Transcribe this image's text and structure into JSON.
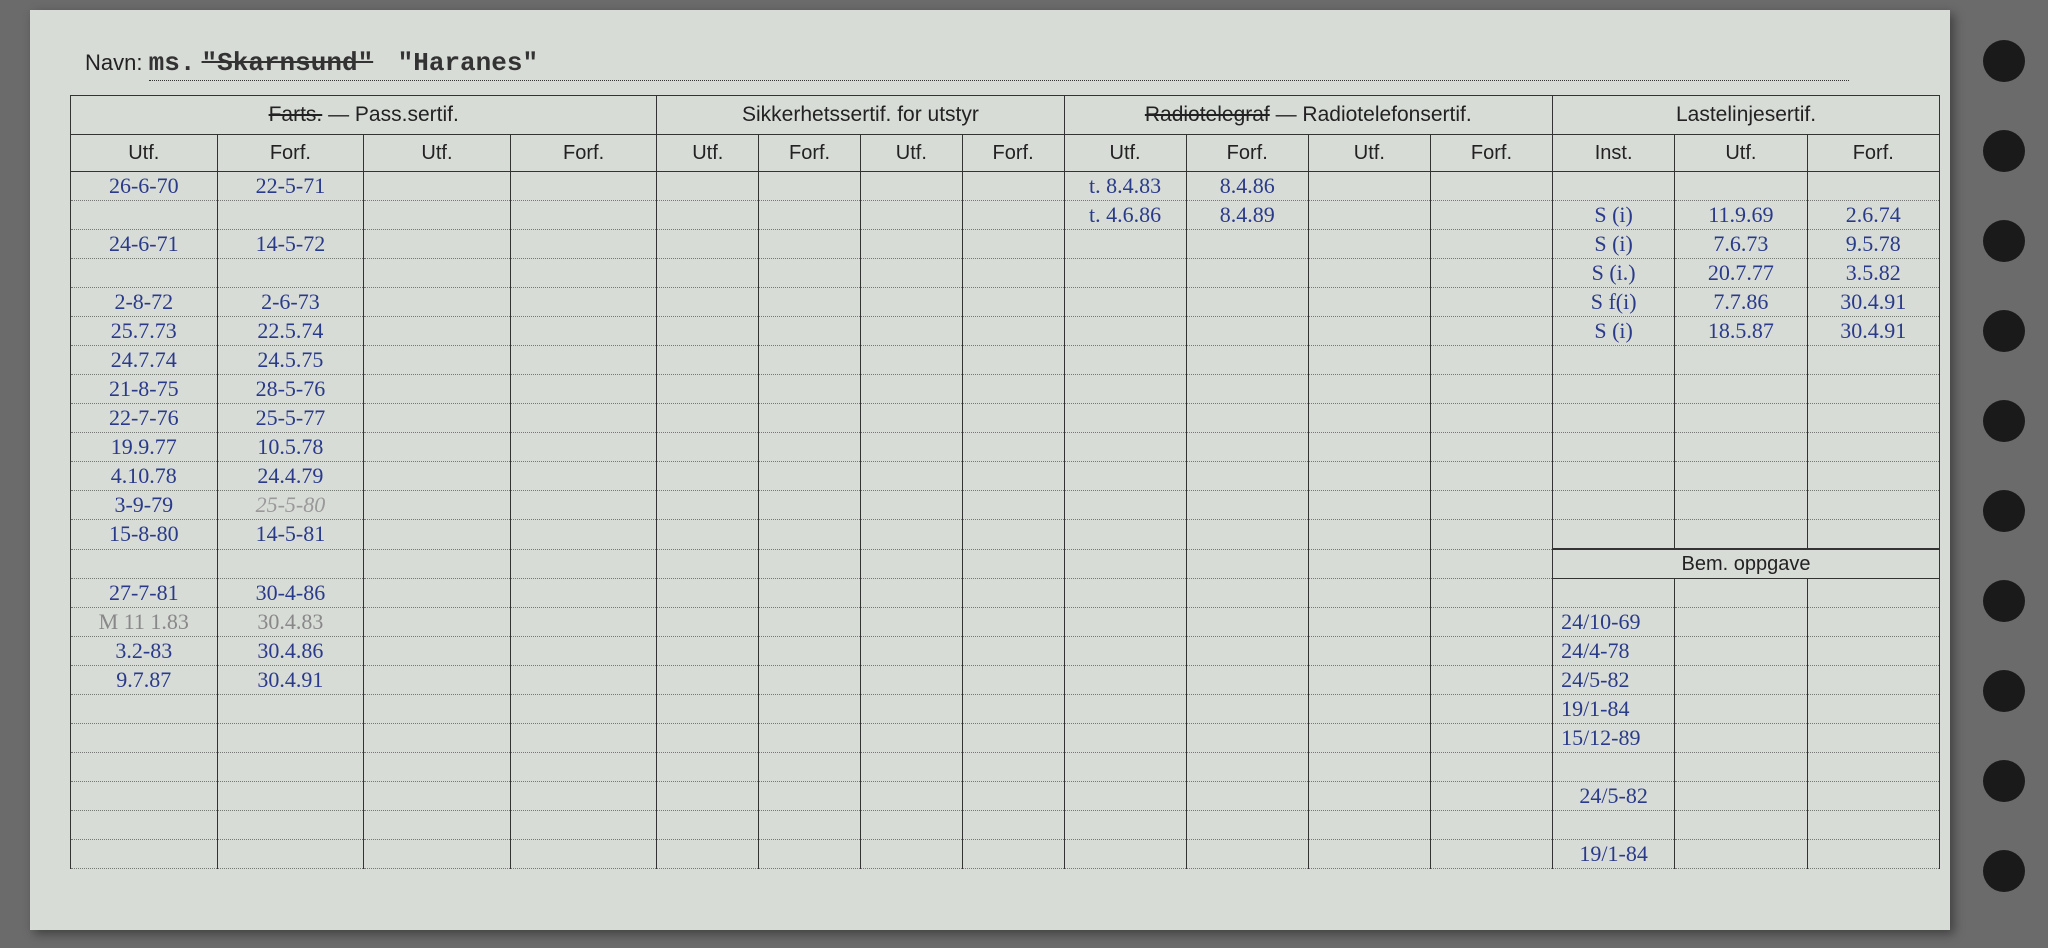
{
  "header": {
    "navn_label": "Navn:",
    "typed_prefix": "ms.",
    "struck_name": "\"Skarnsund\"",
    "name": "\"Haranes\""
  },
  "groups": {
    "g1": {
      "struck": "Farts.",
      "rest": " — Pass.sertif."
    },
    "g2": "Sikkerhetssertif. for utstyr",
    "g3": {
      "struck": "Radiotelegraf",
      "rest": " — Radiotelefonsertif."
    },
    "g4": "Lastelinjesertif."
  },
  "cols": {
    "utf": "Utf.",
    "forf": "Forf.",
    "inst": "Inst."
  },
  "pass": [
    {
      "utf": "26-6-70",
      "forf": "22-5-71"
    },
    {
      "utf": "",
      "forf": ""
    },
    {
      "utf": "24-6-71",
      "forf": "14-5-72"
    },
    {
      "utf": "",
      "forf": ""
    },
    {
      "utf": "2-8-72",
      "forf": "2-6-73"
    },
    {
      "utf": "25.7.73",
      "forf": "22.5.74"
    },
    {
      "utf": "24.7.74",
      "forf": "24.5.75"
    },
    {
      "utf": "21-8-75",
      "forf": "28-5-76"
    },
    {
      "utf": "22-7-76",
      "forf": "25-5-77"
    },
    {
      "utf": "19.9.77",
      "forf": "10.5.78"
    },
    {
      "utf": "4.10.78",
      "forf": "24.4.79"
    },
    {
      "utf": "3-9-79",
      "forf": "25-5-80",
      "grey2": true
    },
    {
      "utf": "15-8-80",
      "forf": "14-5-81"
    },
    {
      "utf": "",
      "forf": ""
    },
    {
      "utf": "27-7-81",
      "forf": "30-4-86"
    },
    {
      "utf": "M 11 1.83",
      "forf": "30.4.83",
      "grey": true
    },
    {
      "utf": "3.2-83",
      "forf": "30.4.86"
    },
    {
      "utf": "9.7.87",
      "forf": "30.4.91"
    },
    {
      "utf": "",
      "forf": ""
    },
    {
      "utf": "",
      "forf": ""
    },
    {
      "utf": "",
      "forf": ""
    },
    {
      "utf": "",
      "forf": ""
    },
    {
      "utf": "",
      "forf": ""
    },
    {
      "utf": "",
      "forf": ""
    }
  ],
  "radio": [
    {
      "utf": "t. 8.4.83",
      "forf": "8.4.86"
    },
    {
      "utf": "t. 4.6.86",
      "forf": "8.4.89"
    }
  ],
  "last": [
    {
      "inst": "S (i)",
      "utf": "11.9.69",
      "forf": "2.6.74"
    },
    {
      "inst": "S (i)",
      "utf": "7.6.73",
      "forf": "9.5.78"
    },
    {
      "inst": "S (i.)",
      "utf": "20.7.77",
      "forf": "3.5.82"
    },
    {
      "inst": "S f(i)",
      "utf": "7.7.86",
      "forf": "30.4.91"
    },
    {
      "inst": "S (i)",
      "utf": "18.5.87",
      "forf": "30.4.91"
    }
  ],
  "bem_label": "Bem. oppgave",
  "bem": [
    "24/10-69",
    "24/4-78",
    "24/5-82",
    "19/1-84",
    "15/12-89"
  ],
  "colors": {
    "paper": "#d8dcd7",
    "ink": "#222",
    "handwriting": "#2a3a8a",
    "border": "#333"
  }
}
